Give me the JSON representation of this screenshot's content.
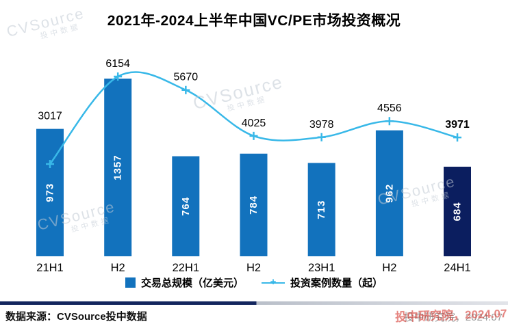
{
  "chart_data": {
    "type": "bar",
    "secondary_type": "line",
    "title": "2021年-2024上半年中国VC/PE市场投资概况",
    "categories": [
      "21H1",
      "H2",
      "22H1",
      "H2",
      "23H1",
      "H2",
      "24H1"
    ],
    "series": [
      {
        "name": "交易总规模（亿美元）",
        "type": "bar",
        "values": [
          973,
          1357,
          764,
          784,
          713,
          962,
          684
        ]
      },
      {
        "name": "投资案例数量（起）",
        "type": "line",
        "values": [
          3017,
          6154,
          5670,
          4025,
          3978,
          4556,
          3971
        ]
      }
    ],
    "grid": false,
    "legend_position": "bottom",
    "bar_color": "#1272bd",
    "bar_color_last": "#0b1e5f",
    "bar_value_color": "#ffffff",
    "line_color": "#38b8e8",
    "value_label_color": "#000000"
  },
  "legend": {
    "bar_label": "交易总规模（亿美元）",
    "line_label": "投资案例数量（起）"
  },
  "footer": {
    "source_label": "数据来源：CVSource投中数据",
    "credit": "投中研究院，2024.07"
  },
  "watermark": {
    "brand": "CVSource",
    "sub": "投中数据"
  }
}
